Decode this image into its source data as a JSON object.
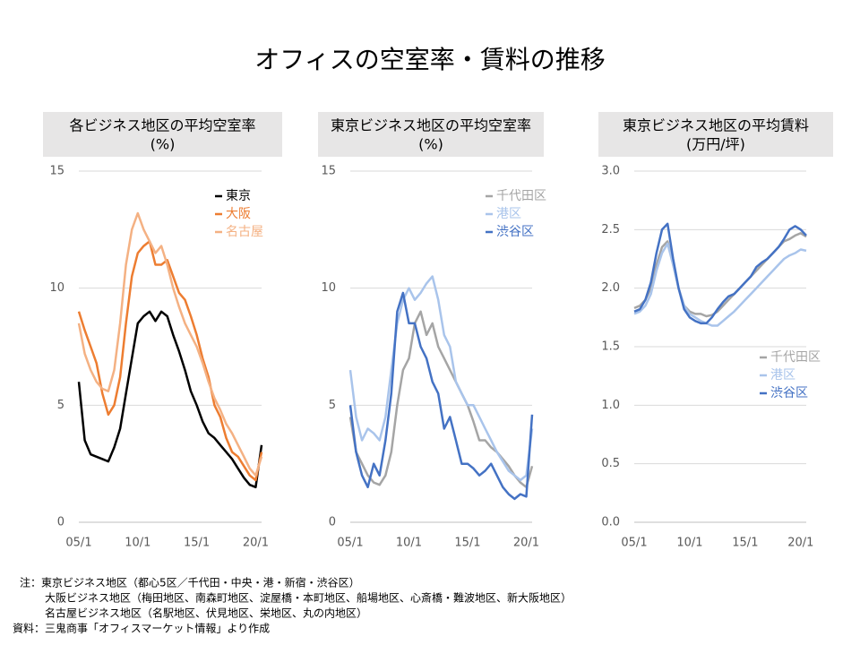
{
  "title": "オフィスの空室率・賃料の推移",
  "notes": [
    "注：東京ビジネス地区（都心5区／千代田・中央・港・新宿・渋谷区）",
    "大阪ビジネス地区（梅田地区、南森町地区、淀屋橋・本町地区、船場地区、心斎橋・難波地区、新大阪地区）",
    "名古屋ビジネス地区（名駅地区、伏見地区、栄地区、丸の内地区）",
    "資料：三鬼商事「オフィスマーケット情報」より作成"
  ],
  "chart_data": [
    {
      "type": "line",
      "title": "各ビジネス地区の平均空室率",
      "ylabel": "(%)",
      "legend": "upper right",
      "categories": [
        "05/1",
        null,
        null,
        null,
        null,
        null,
        null,
        null,
        null,
        null,
        "10/1",
        null,
        null,
        null,
        null,
        null,
        null,
        null,
        null,
        null,
        "15/1",
        null,
        null,
        null,
        null,
        null,
        null,
        null,
        null,
        null,
        "20/1",
        null
      ],
      "ylim": [
        0,
        15
      ],
      "yticks": [
        0,
        5,
        10,
        15
      ],
      "grid": true,
      "series": [
        {
          "name": "東京",
          "color": "#000000",
          "values": [
            6.0,
            3.5,
            2.9,
            2.8,
            2.7,
            2.6,
            3.2,
            4.0,
            5.5,
            7.0,
            8.5,
            8.8,
            9.0,
            8.6,
            9.0,
            8.8,
            8.0,
            7.3,
            6.5,
            5.6,
            5.0,
            4.3,
            3.8,
            3.6,
            3.3,
            3.0,
            2.7,
            2.3,
            1.9,
            1.6,
            1.5,
            3.3
          ]
        },
        {
          "name": "大阪",
          "color": "#ed7d31",
          "values": [
            9.0,
            8.2,
            7.5,
            6.8,
            5.5,
            4.6,
            5.0,
            6.2,
            8.5,
            10.5,
            11.5,
            11.8,
            12.0,
            11.0,
            11.0,
            11.2,
            10.5,
            9.8,
            9.5,
            8.8,
            8.0,
            7.0,
            6.2,
            5.0,
            4.5,
            3.6,
            3.0,
            2.8,
            2.4,
            2.0,
            1.8,
            3.0
          ]
        },
        {
          "name": "名古屋",
          "color": "#f4b183",
          "values": [
            8.5,
            7.2,
            6.5,
            6.0,
            5.7,
            5.6,
            6.5,
            8.5,
            11.0,
            12.5,
            13.2,
            12.5,
            12.0,
            11.5,
            11.8,
            11.0,
            10.0,
            9.2,
            8.5,
            8.0,
            7.5,
            6.8,
            6.0,
            5.3,
            4.8,
            4.2,
            3.8,
            3.3,
            2.8,
            2.3,
            2.0,
            2.8
          ]
        }
      ]
    },
    {
      "type": "line",
      "title": "東京ビジネス地区の平均空室率",
      "ylabel": "(%)",
      "legend": "upper right",
      "categories": [
        "05/1",
        null,
        null,
        null,
        null,
        null,
        null,
        null,
        null,
        null,
        "10/1",
        null,
        null,
        null,
        null,
        null,
        null,
        null,
        null,
        null,
        "15/1",
        null,
        null,
        null,
        null,
        null,
        null,
        null,
        null,
        null,
        "20/1",
        null
      ],
      "ylim": [
        0,
        15
      ],
      "yticks": [
        0,
        5,
        10,
        15
      ],
      "grid": true,
      "series": [
        {
          "name": "千代田区",
          "color": "#a5a5a5",
          "values": [
            4.5,
            3.0,
            2.5,
            2.0,
            1.7,
            1.6,
            2.0,
            3.0,
            5.0,
            6.5,
            7.0,
            8.5,
            9.0,
            8.0,
            8.5,
            7.5,
            7.0,
            6.5,
            6.0,
            5.5,
            5.0,
            4.3,
            3.5,
            3.5,
            3.2,
            3.0,
            2.7,
            2.4,
            2.0,
            1.7,
            1.5,
            2.4
          ]
        },
        {
          "name": "港区",
          "color": "#a9c4eb",
          "values": [
            6.5,
            4.5,
            3.5,
            4.0,
            3.8,
            3.5,
            4.5,
            6.5,
            8.5,
            9.5,
            10.0,
            9.5,
            9.8,
            10.2,
            10.5,
            9.5,
            8.0,
            7.5,
            6.0,
            5.5,
            5.0,
            5.0,
            4.5,
            4.0,
            3.5,
            3.0,
            2.6,
            2.2,
            2.0,
            1.8,
            2.0,
            4.0
          ]
        },
        {
          "name": "渋谷区",
          "color": "#4472c4",
          "values": [
            5.0,
            3.0,
            2.0,
            1.5,
            2.5,
            2.0,
            3.5,
            5.5,
            9.0,
            9.8,
            8.5,
            8.5,
            7.5,
            7.0,
            6.0,
            5.5,
            4.0,
            4.5,
            3.5,
            2.5,
            2.5,
            2.3,
            2.0,
            2.2,
            2.5,
            2.0,
            1.5,
            1.2,
            1.0,
            1.2,
            1.1,
            4.6
          ]
        }
      ]
    },
    {
      "type": "line",
      "title": "東京ビジネス地区の平均賃料",
      "ylabel": "(万円/坪)",
      "legend": "center right",
      "categories": [
        "05/1",
        null,
        null,
        null,
        null,
        null,
        null,
        null,
        null,
        null,
        "10/1",
        null,
        null,
        null,
        null,
        null,
        null,
        null,
        null,
        null,
        "15/1",
        null,
        null,
        null,
        null,
        null,
        null,
        null,
        null,
        null,
        "20/1",
        null
      ],
      "ylim": [
        0,
        3
      ],
      "yticks": [
        {
          "value": 0,
          "label": "0.0"
        },
        {
          "value": 0.5,
          "label": "0.5"
        },
        {
          "value": 1,
          "label": "1.0"
        },
        {
          "value": 1.5,
          "label": "1.5"
        },
        {
          "value": 2,
          "label": "2.0"
        },
        {
          "value": 2.5,
          "label": "2.5"
        },
        {
          "value": 3,
          "label": "3.0"
        }
      ],
      "grid": true,
      "series": [
        {
          "name": "千代田区",
          "color": "#a5a5a5",
          "values": [
            1.83,
            1.85,
            1.9,
            2.0,
            2.2,
            2.35,
            2.4,
            2.2,
            2.0,
            1.85,
            1.8,
            1.78,
            1.78,
            1.76,
            1.77,
            1.8,
            1.85,
            1.9,
            1.95,
            2.0,
            2.05,
            2.1,
            2.15,
            2.2,
            2.25,
            2.3,
            2.35,
            2.4,
            2.42,
            2.45,
            2.47,
            2.44
          ]
        },
        {
          "name": "港区",
          "color": "#a9c4eb",
          "values": [
            1.78,
            1.8,
            1.85,
            1.95,
            2.15,
            2.3,
            2.38,
            2.2,
            2.0,
            1.85,
            1.78,
            1.75,
            1.72,
            1.7,
            1.68,
            1.68,
            1.72,
            1.76,
            1.8,
            1.85,
            1.9,
            1.95,
            2.0,
            2.05,
            2.1,
            2.15,
            2.2,
            2.25,
            2.28,
            2.3,
            2.33,
            2.32
          ]
        },
        {
          "name": "渋谷区",
          "color": "#4472c4",
          "values": [
            1.8,
            1.82,
            1.9,
            2.05,
            2.3,
            2.5,
            2.55,
            2.25,
            2.0,
            1.82,
            1.75,
            1.72,
            1.7,
            1.7,
            1.75,
            1.82,
            1.88,
            1.93,
            1.95,
            2.0,
            2.05,
            2.1,
            2.18,
            2.22,
            2.25,
            2.3,
            2.35,
            2.42,
            2.5,
            2.53,
            2.5,
            2.45
          ]
        }
      ]
    }
  ]
}
